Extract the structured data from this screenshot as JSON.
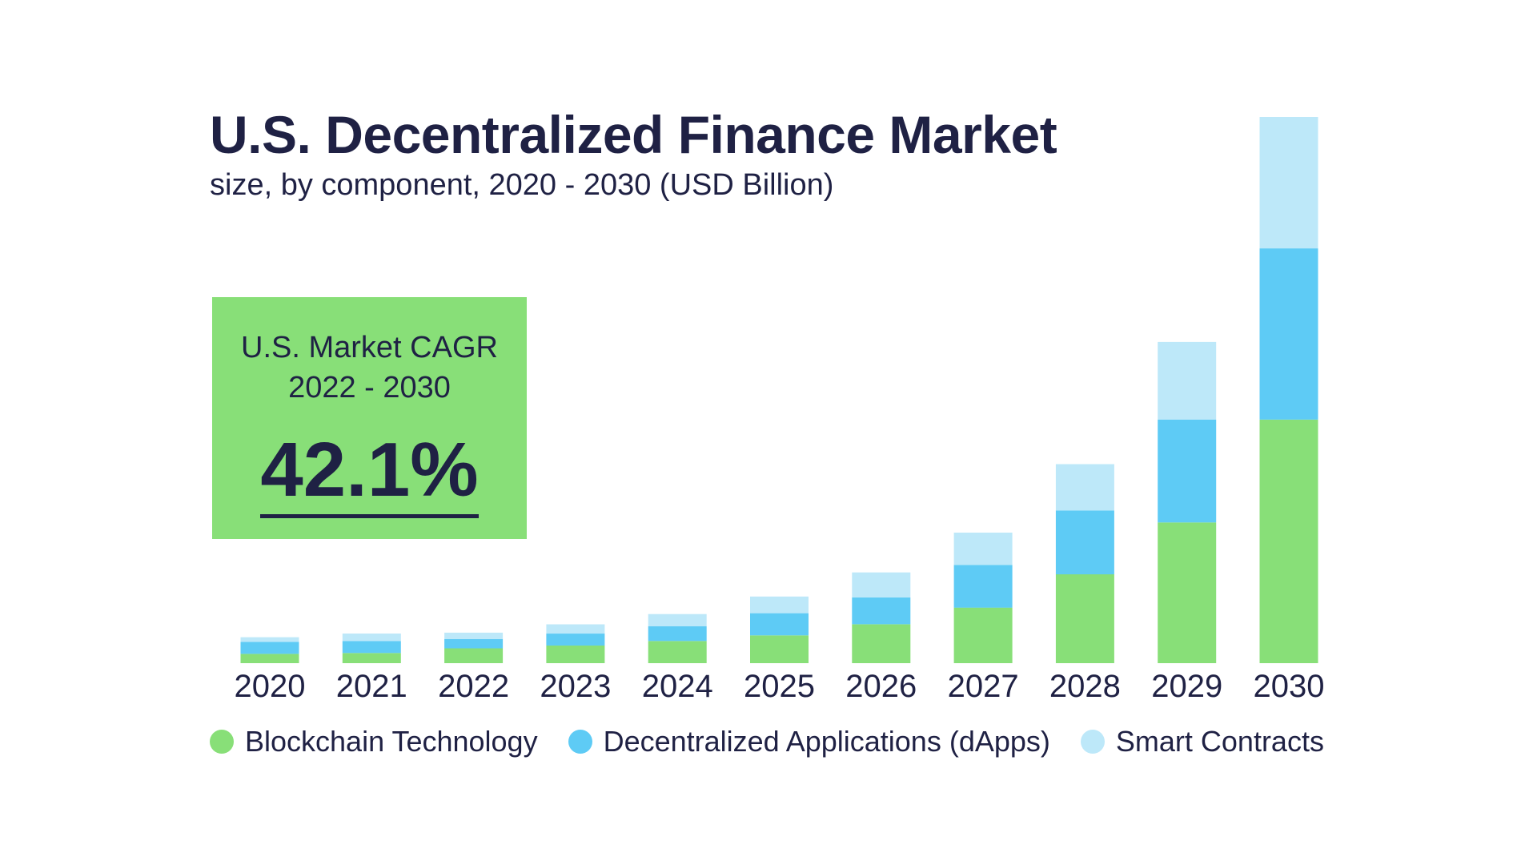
{
  "title": "U.S. Decentralized Finance Market",
  "subtitle": "size, by component, 2020 - 2030 (USD Billion)",
  "cagr": {
    "line1": "U.S. Market CAGR",
    "line2": "2022 - 2030",
    "value": "42.1%",
    "color": "#88df78"
  },
  "legend": [
    {
      "name": "Blockchain Technology",
      "color": "#88df78"
    },
    {
      "name": "Decentralized Applications (dApps)",
      "color": "#5ecbf5"
    },
    {
      "name": "Smart Contracts",
      "color": "#bde8f9"
    }
  ],
  "chart_data": {
    "type": "bar",
    "stacked": true,
    "categories": [
      "2020",
      "2021",
      "2022",
      "2023",
      "2024",
      "2025",
      "2026",
      "2027",
      "2028",
      "2029",
      "2030"
    ],
    "series": [
      {
        "name": "Blockchain Technology",
        "color": "#88df78",
        "values": [
          1.0,
          1.1,
          1.6,
          1.9,
          2.4,
          3.0,
          4.2,
          6.0,
          9.6,
          15.2,
          26.3
        ]
      },
      {
        "name": "Decentralized Applications (dApps)",
        "color": "#5ecbf5",
        "values": [
          1.3,
          1.3,
          1.0,
          1.3,
          1.6,
          2.4,
          2.9,
          4.6,
          6.9,
          11.1,
          18.5
        ]
      },
      {
        "name": "Smart Contracts",
        "color": "#bde8f9",
        "values": [
          0.5,
          0.8,
          0.7,
          1.0,
          1.3,
          1.8,
          2.7,
          3.5,
          5.0,
          8.4,
          14.2
        ]
      }
    ],
    "ylim": [
      0,
      59
    ],
    "grid": false,
    "legend_position": "bottom"
  }
}
